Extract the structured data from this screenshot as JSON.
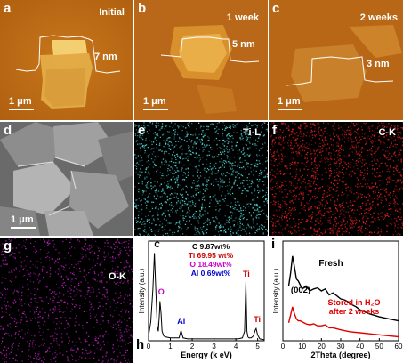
{
  "panels": {
    "a": {
      "letter": "a",
      "title": "Initial",
      "height_label": "7 nm",
      "scale": "1 μm"
    },
    "b": {
      "letter": "b",
      "title": "1 week",
      "height_label": "5 nm",
      "scale": "1 μm"
    },
    "c": {
      "letter": "c",
      "title": "2 weeks",
      "height_label": "3 nm",
      "scale": "1 μm"
    },
    "d": {
      "letter": "d",
      "scale": "1 μm"
    },
    "e": {
      "letter": "e",
      "element": "Ti-L",
      "dot_color": "#4fd8d8"
    },
    "f": {
      "letter": "f",
      "element": "C-K",
      "dot_color": "#e02020"
    },
    "g": {
      "letter": "g",
      "element": "O-K",
      "dot_color": "#c020c0"
    },
    "h": {
      "letter": "h"
    },
    "i": {
      "letter": "i"
    }
  },
  "eds": {
    "composition": [
      {
        "label": "C 9.87wt%",
        "color": "#000000"
      },
      {
        "label": "Ti 69.95 wt%",
        "color": "#cc0000"
      },
      {
        "label": "O 18.49wt%",
        "color": "#cc00cc"
      },
      {
        "label": "Al 0.69wt%",
        "color": "#0000cc"
      }
    ],
    "peak_labels": [
      {
        "label": "C",
        "color": "#000000"
      },
      {
        "label": "O",
        "color": "#cc00cc"
      },
      {
        "label": "Al",
        "color": "#0000cc"
      },
      {
        "label": "Ti",
        "color": "#cc0000"
      },
      {
        "label": "Ti",
        "color": "#cc0000"
      }
    ]
  },
  "chart_data": [
    {
      "type": "line",
      "panel": "h",
      "xlabel": "Energy (k eV)",
      "ylabel": "Intensity (a.u.)",
      "xlim": [
        0,
        5.3
      ],
      "x_ticks": [
        0,
        1,
        2,
        3,
        4,
        5
      ],
      "series": [
        {
          "color": "#000000",
          "x": [
            0.0,
            0.1,
            0.2,
            0.27,
            0.33,
            0.4,
            0.45,
            0.5,
            0.52,
            0.57,
            0.62,
            0.7,
            0.8,
            1.0,
            1.2,
            1.4,
            1.49,
            1.58,
            1.8,
            2.2,
            2.6,
            3.0,
            3.4,
            3.8,
            4.1,
            4.3,
            4.4,
            4.46,
            4.51,
            4.56,
            4.6,
            4.7,
            4.8,
            4.9,
            4.93,
            5.0,
            5.1,
            5.3
          ],
          "y": [
            0.05,
            0.2,
            0.55,
            0.93,
            0.55,
            0.15,
            0.1,
            0.3,
            0.42,
            0.3,
            0.1,
            0.05,
            0.04,
            0.03,
            0.03,
            0.03,
            0.11,
            0.03,
            0.02,
            0.02,
            0.02,
            0.02,
            0.02,
            0.02,
            0.02,
            0.03,
            0.1,
            0.62,
            0.1,
            0.04,
            0.03,
            0.03,
            0.05,
            0.12,
            0.13,
            0.06,
            0.02,
            0.01
          ]
        }
      ]
    },
    {
      "type": "line",
      "panel": "i",
      "xlabel": "2Theta (degree)",
      "ylabel": "Intensity (a.u.)",
      "xlim": [
        0,
        60
      ],
      "x_ticks": [
        0,
        10,
        20,
        30,
        40,
        50,
        60
      ],
      "annotation": "(002)",
      "series": [
        {
          "name": "Fresh",
          "color": "#000000",
          "x": [
            3,
            4,
            5,
            6,
            7,
            8,
            9,
            10,
            12,
            14,
            16,
            18,
            20,
            22,
            24,
            26,
            28,
            30,
            32,
            34,
            36,
            38,
            40,
            45,
            50,
            55,
            60
          ],
          "y": [
            0.55,
            0.68,
            0.85,
            0.74,
            0.62,
            0.6,
            0.56,
            0.52,
            0.55,
            0.5,
            0.52,
            0.53,
            0.5,
            0.52,
            0.46,
            0.48,
            0.45,
            0.42,
            0.41,
            0.39,
            0.36,
            0.34,
            0.31,
            0.27,
            0.24,
            0.22,
            0.2
          ]
        },
        {
          "name": "Stored in H₂O after 2 weeks",
          "color": "#e00000",
          "x": [
            3,
            4,
            5,
            6,
            7,
            8,
            9,
            10,
            12,
            14,
            16,
            18,
            20,
            22,
            24,
            26,
            28,
            30,
            35,
            40,
            45,
            50,
            55,
            60
          ],
          "y": [
            0.18,
            0.26,
            0.34,
            0.27,
            0.22,
            0.2,
            0.2,
            0.19,
            0.17,
            0.16,
            0.17,
            0.15,
            0.15,
            0.16,
            0.13,
            0.13,
            0.12,
            0.11,
            0.09,
            0.08,
            0.07,
            0.06,
            0.05,
            0.04
          ]
        }
      ]
    }
  ]
}
